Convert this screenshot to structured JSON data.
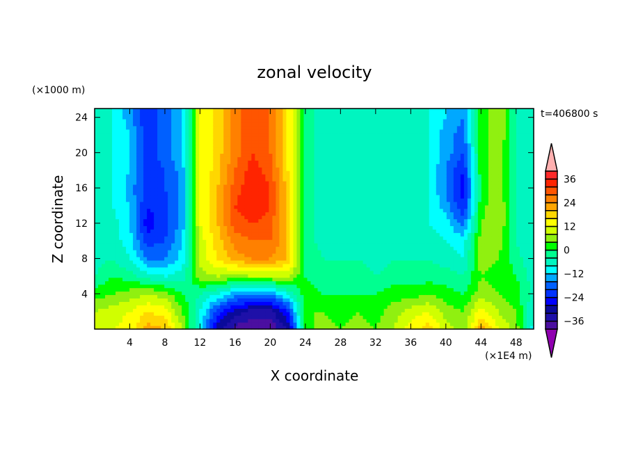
{
  "chart_data": {
    "type": "heatmap",
    "title": "zonal velocity",
    "xlabel": "X coordinate",
    "ylabel": "Z coordinate",
    "x_units": "(×1E4 m)",
    "y_units": "(×1000 m)",
    "time_label": "t=406800 s",
    "xlim": [
      0,
      50
    ],
    "ylim": [
      0,
      25
    ],
    "x_ticks": [
      4,
      8,
      12,
      16,
      20,
      24,
      28,
      32,
      36,
      40,
      44,
      48
    ],
    "y_ticks": [
      4,
      8,
      12,
      16,
      20,
      24
    ],
    "grid_x": [
      0,
      2,
      4,
      6,
      8,
      10,
      12,
      14,
      16,
      18,
      20,
      22,
      24,
      26,
      28,
      30,
      32,
      34,
      36,
      38,
      40,
      42,
      44,
      46,
      48,
      50
    ],
    "grid_z": [
      0,
      2,
      4,
      6,
      8,
      10,
      12,
      14,
      16,
      18,
      20,
      22,
      24
    ],
    "values": [
      [
        10,
        12,
        14,
        22,
        20,
        8,
        -10,
        -30,
        -38,
        -40,
        -40,
        -32,
        2,
        6,
        4,
        6,
        4,
        8,
        14,
        18,
        10,
        6,
        22,
        12,
        6,
        -10
      ],
      [
        8,
        10,
        12,
        16,
        14,
        4,
        -8,
        -22,
        -30,
        -34,
        -34,
        -24,
        4,
        4,
        2,
        4,
        2,
        6,
        10,
        12,
        6,
        4,
        14,
        8,
        4,
        -8
      ],
      [
        2,
        4,
        6,
        8,
        6,
        0,
        -4,
        -8,
        -14,
        -16,
        -16,
        -8,
        2,
        0,
        0,
        0,
        0,
        2,
        2,
        4,
        2,
        0,
        6,
        4,
        2,
        -6
      ],
      [
        -4,
        0,
        -2,
        -6,
        -8,
        -6,
        6,
        8,
        6,
        8,
        8,
        8,
        0,
        -2,
        -2,
        -2,
        -4,
        -2,
        -2,
        -2,
        -2,
        -4,
        4,
        2,
        0,
        -6
      ],
      [
        -6,
        -4,
        -8,
        -16,
        -16,
        -10,
        10,
        16,
        22,
        24,
        24,
        20,
        0,
        -4,
        -4,
        -4,
        -6,
        -4,
        -4,
        -4,
        -6,
        -8,
        6,
        4,
        -2,
        -8
      ],
      [
        -8,
        -6,
        -10,
        -22,
        -20,
        -12,
        10,
        18,
        26,
        28,
        28,
        20,
        -2,
        -6,
        -4,
        -6,
        -6,
        -6,
        -6,
        -6,
        -8,
        -10,
        6,
        6,
        -4,
        -8
      ],
      [
        -8,
        -6,
        -12,
        -26,
        -22,
        -14,
        12,
        20,
        30,
        32,
        30,
        18,
        -2,
        -6,
        -6,
        -6,
        -6,
        -6,
        -8,
        -8,
        -10,
        -18,
        4,
        8,
        -4,
        -8
      ],
      [
        -8,
        -8,
        -12,
        -24,
        -22,
        -14,
        12,
        20,
        32,
        36,
        32,
        18,
        -2,
        -6,
        -6,
        -6,
        -6,
        -6,
        -8,
        -8,
        -14,
        -24,
        2,
        8,
        -4,
        -8
      ],
      [
        -8,
        -8,
        -14,
        -22,
        -20,
        -14,
        12,
        20,
        30,
        36,
        32,
        18,
        -2,
        -6,
        -6,
        -6,
        -6,
        -4,
        -8,
        -8,
        -16,
        -26,
        2,
        6,
        -4,
        -8
      ],
      [
        -8,
        -8,
        -12,
        -22,
        -20,
        -14,
        12,
        18,
        28,
        34,
        30,
        16,
        -2,
        -6,
        -6,
        -6,
        -6,
        -4,
        -8,
        -8,
        -16,
        -24,
        2,
        6,
        -4,
        -8
      ],
      [
        -8,
        -8,
        -12,
        -22,
        -18,
        -12,
        12,
        18,
        26,
        32,
        28,
        16,
        -2,
        -6,
        -6,
        -6,
        -6,
        -4,
        -8,
        -8,
        -14,
        -20,
        2,
        6,
        -4,
        -8
      ],
      [
        -8,
        -8,
        -12,
        -22,
        -18,
        -12,
        12,
        18,
        26,
        32,
        28,
        16,
        -2,
        -6,
        -6,
        -6,
        -6,
        -6,
        -8,
        -8,
        -14,
        -18,
        2,
        8,
        -4,
        -8
      ],
      [
        -8,
        -8,
        -14,
        -24,
        -18,
        -12,
        12,
        18,
        26,
        32,
        28,
        16,
        -2,
        -6,
        -6,
        -6,
        -6,
        -6,
        -8,
        -8,
        -12,
        -16,
        2,
        8,
        -4,
        -8
      ]
    ],
    "colorbar": {
      "levels": [
        -40,
        -36,
        -32,
        -28,
        -24,
        -20,
        -16,
        -12,
        -8,
        -4,
        0,
        4,
        8,
        12,
        16,
        20,
        24,
        28,
        32,
        36,
        40
      ],
      "labels": [
        36,
        24,
        12,
        0,
        -12,
        -24,
        -36
      ],
      "colors": [
        "#4b0fa0",
        "#1e10a8",
        "#0a0a9a",
        "#0000ff",
        "#0032ff",
        "#0060ff",
        "#00a8ff",
        "#00ffff",
        "#00f5c0",
        "#00ff90",
        "#00ff00",
        "#90f010",
        "#d0ff00",
        "#ffff00",
        "#ffd700",
        "#ffa500",
        "#ff8000",
        "#ff5500",
        "#ff2400",
        "#ff2a2a"
      ],
      "under_color": "#9000b0",
      "over_color": "#ffb0b0"
    }
  }
}
